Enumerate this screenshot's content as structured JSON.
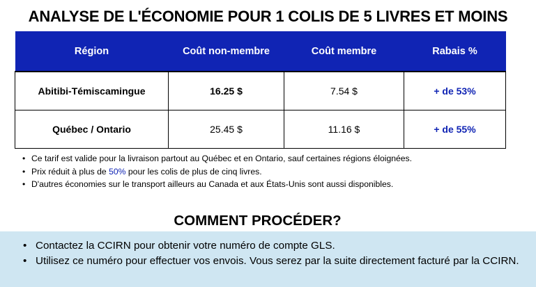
{
  "title": "ANALYSE DE L'ÉCONOMIE POUR 1 COLIS DE 5 LIVRES ET MOINS",
  "table": {
    "headers": [
      "Région",
      "Coût non-membre",
      "Coût membre",
      "Rabais %"
    ],
    "rows": [
      {
        "region": "Abitibi-Témiscamingue",
        "non_member": "16.25 $",
        "member": "7.54 $",
        "rebate": "+ de 53%"
      },
      {
        "region": "Québec / Ontario",
        "non_member": "25.45 $",
        "member": "11.16 $",
        "rebate": "+ de 55%"
      }
    ],
    "accent_color": "#1024b4"
  },
  "notes": {
    "n0": "Ce tarif est valide pour la livraison partout au Québec et en Ontario, sauf certaines régions éloignées.",
    "n1_before": "Prix réduit à plus de ",
    "n1_highlight": "50%",
    "n1_after": " pour les colis de plus de cinq livres.",
    "n2": "D'autres économies sur le transport ailleurs au Canada et aux États-Unis sont aussi disponibles."
  },
  "howto": {
    "title": "COMMENT PROCÉDER?",
    "steps": [
      "Contactez la CCIRN pour obtenir votre numéro de compte GLS.",
      "Utilisez ce numéro pour effectuer vos envois. Vous serez par la suite directement facturé par la CCIRN."
    ],
    "background_color": "#cfe6f2"
  }
}
